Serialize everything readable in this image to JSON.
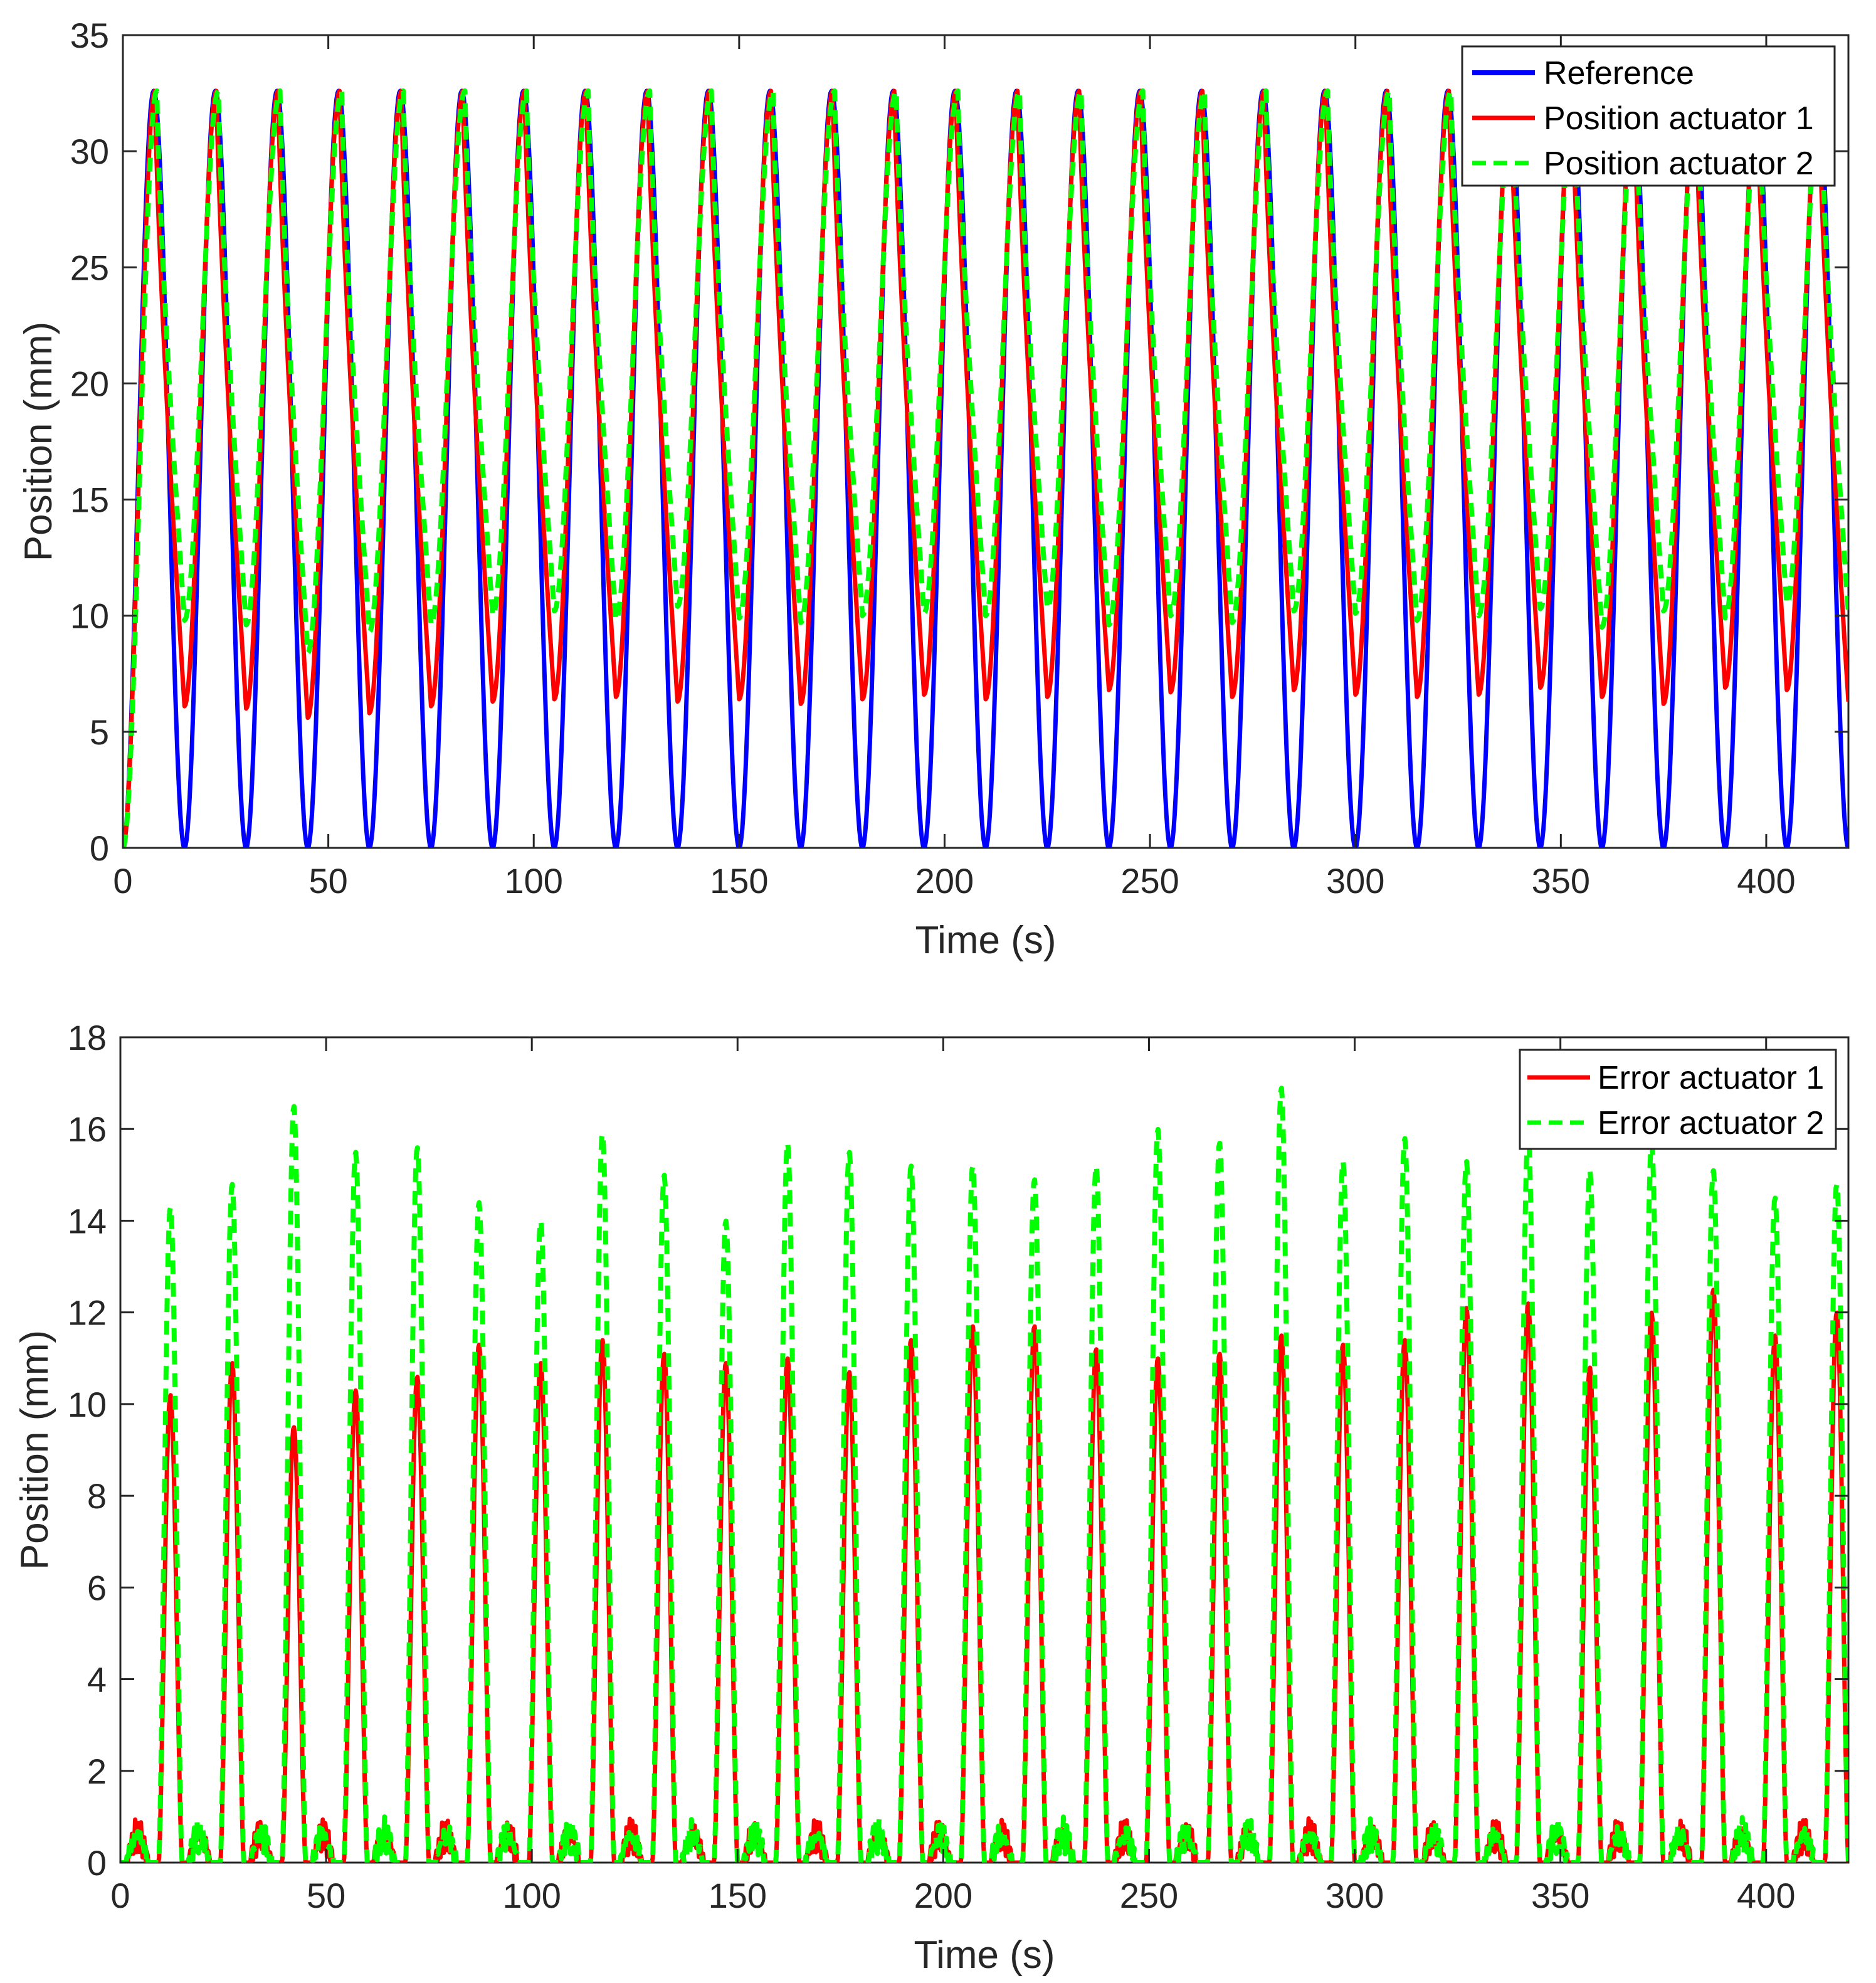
{
  "chart_data": [
    {
      "type": "line",
      "xlabel": "Time (s)",
      "ylabel": "Position (mm)",
      "xlim": [
        0,
        420
      ],
      "ylim": [
        0,
        35
      ],
      "xticks": [
        0,
        50,
        100,
        150,
        200,
        250,
        300,
        350,
        400
      ],
      "yticks": [
        0,
        5,
        10,
        15,
        20,
        25,
        30,
        35
      ],
      "grid": false,
      "legend_position": "top-right",
      "period_s": 15,
      "cycles": 28,
      "series": [
        {
          "name": "Reference",
          "color": "#0000ff",
          "style": "solid",
          "peak": 32.6,
          "trough": 0
        },
        {
          "name": "Position actuator 1",
          "color": "#ff0000",
          "style": "solid",
          "peak": 32.6,
          "troughs": [
            6.1,
            6.0,
            5.6,
            5.8,
            6.1,
            6.3,
            6.4,
            6.5,
            6.3,
            6.4,
            6.2,
            6.4,
            6.6,
            6.4,
            6.5,
            6.8,
            6.7,
            6.5,
            6.8,
            6.6,
            6.5,
            6.6,
            6.9,
            6.5,
            6.2,
            6.9,
            6.8,
            6.3
          ]
        },
        {
          "name": "Position actuator 2",
          "color": "#00ff00",
          "style": "dashed",
          "peak": 32.6,
          "troughs": [
            9.8,
            9.6,
            8.4,
            9.3,
            9.6,
            10.0,
            10.2,
            9.8,
            10.4,
            9.9,
            9.7,
            10.0,
            10.1,
            10.0,
            10.3,
            9.6,
            10.0,
            9.7,
            10.2,
            10.1,
            9.8,
            10.0,
            10.3,
            9.5,
            10.2,
            9.9,
            10.5,
            10.1
          ]
        }
      ]
    },
    {
      "type": "line",
      "xlabel": "Time (s)",
      "ylabel": "Position (mm)",
      "xlim": [
        0,
        420
      ],
      "ylim": [
        0,
        18
      ],
      "xticks": [
        0,
        50,
        100,
        150,
        200,
        250,
        300,
        350,
        400
      ],
      "yticks": [
        0,
        2,
        4,
        6,
        8,
        10,
        12,
        14,
        16,
        18
      ],
      "grid": false,
      "legend_position": "top-right",
      "period_s": 15,
      "cycles": 28,
      "series": [
        {
          "name": "Error actuator 1",
          "color": "#ff0000",
          "style": "solid",
          "peaks": [
            10.2,
            10.9,
            9.5,
            10.3,
            10.6,
            11.3,
            10.9,
            11.4,
            11.1,
            10.9,
            11.0,
            10.7,
            11.4,
            11.7,
            11.7,
            11.2,
            11.0,
            11.1,
            11.5,
            11.3,
            11.4,
            12.1,
            12.2,
            10.8,
            12.0,
            12.5,
            11.5,
            12.0
          ]
        },
        {
          "name": "Error actuator 2",
          "color": "#00ff00",
          "style": "dashed",
          "peaks": [
            14.3,
            14.8,
            16.5,
            15.5,
            15.6,
            14.4,
            14.0,
            15.9,
            15.0,
            14.0,
            15.7,
            15.5,
            15.2,
            15.2,
            14.9,
            15.2,
            16.0,
            15.7,
            16.9,
            15.3,
            15.8,
            15.3,
            15.9,
            15.1,
            15.7,
            15.1,
            14.5,
            14.8
          ]
        }
      ]
    }
  ]
}
